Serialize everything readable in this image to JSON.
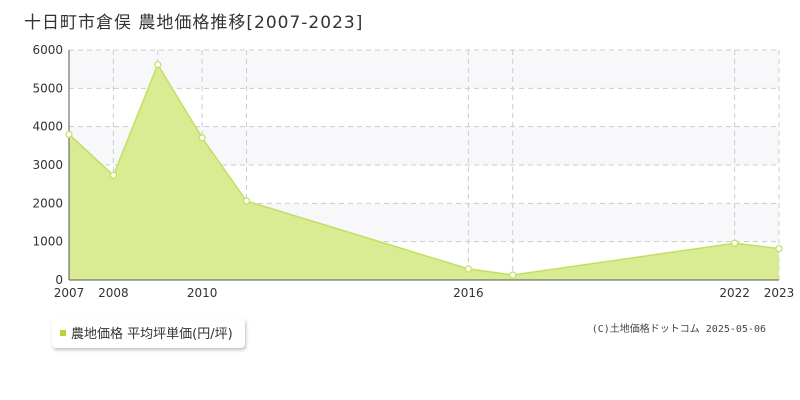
{
  "page": {
    "title": "十日町市倉俣 農地価格推移[2007-2023]",
    "copyright": "(C)土地価格ドットコム 2025-05-06"
  },
  "legend": {
    "label": "農地価格 平均坪単価(円/坪)"
  },
  "colors": {
    "area_fill": "#d9ec93",
    "line": "#c2df63",
    "marker_fill": "#ffffff",
    "band_fill": "#f8f7fa",
    "grid": "#cccccc",
    "legend_swatch": "#b5d43c"
  },
  "chart_data": {
    "type": "area",
    "title": "",
    "xlabel": "",
    "ylabel": "",
    "xlim": [
      2007,
      2023
    ],
    "ylim": [
      0,
      6000
    ],
    "yticks": [
      0,
      1000,
      2000,
      3000,
      4000,
      5000,
      6000
    ],
    "xtick_labels": [
      "2007",
      "2008",
      "2010",
      "2016",
      "2022",
      "2023"
    ],
    "xtick_years": [
      2007,
      2008,
      2010,
      2016,
      2022,
      2023
    ],
    "grid": true,
    "legend_position": "bottom-left",
    "series": [
      {
        "name": "農地価格 平均坪単価(円/坪)",
        "x": [
          2007,
          2008,
          2009,
          2010,
          2011,
          2016,
          2017,
          2022,
          2023
        ],
        "y": [
          3800,
          2730,
          5620,
          3710,
          2060,
          290,
          130,
          960,
          820
        ]
      }
    ]
  }
}
